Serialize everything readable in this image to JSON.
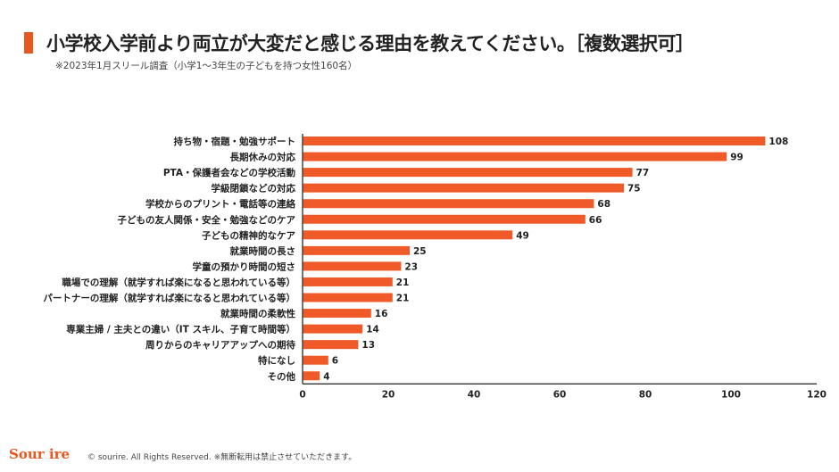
{
  "header": {
    "title": "小学校入学前より両立が大変だと感じる理由を教えてください。［複数選択可］",
    "subtitle": "※2023年1月スリール調査（小学1～3年生の子どもを持つ女性160名）"
  },
  "footer": {
    "logo": "Sour ire",
    "copyright": "© sourire. All Rights Reserved. ※無断転用は禁止させていただきます。"
  },
  "colors": {
    "bar": "#f05a28",
    "accent": "#e8571e"
  },
  "chart_data": {
    "type": "bar",
    "orientation": "horizontal",
    "categories": [
      "持ち物・宿題・勉強サポート",
      "長期休みの対応",
      "PTA・保護者会などの学校活動",
      "学級閉鎖などの対応",
      "学校からのプリント・電話等の連絡",
      "子どもの友人関係・安全・勉強などのケア",
      "子どもの精神的なケア",
      "就業時間の長さ",
      "学童の預かり時間の短さ",
      "職場での理解（就学すれば楽になると思われている等）",
      "パートナーの理解（就学すれば楽になると思われている等）",
      "就業時間の柔軟性",
      "専業主婦 / 主夫との違い（IT スキル、子育て時間等）",
      "周りからのキャリアアップへの期待",
      "特になし",
      "その他"
    ],
    "values": [
      108,
      99,
      77,
      75,
      68,
      66,
      49,
      25,
      23,
      21,
      21,
      16,
      14,
      13,
      6,
      4
    ],
    "xlim": [
      0,
      120
    ],
    "xticks": [
      0,
      20,
      40,
      60,
      80,
      100,
      120
    ],
    "grid": false,
    "data_labels": true
  }
}
